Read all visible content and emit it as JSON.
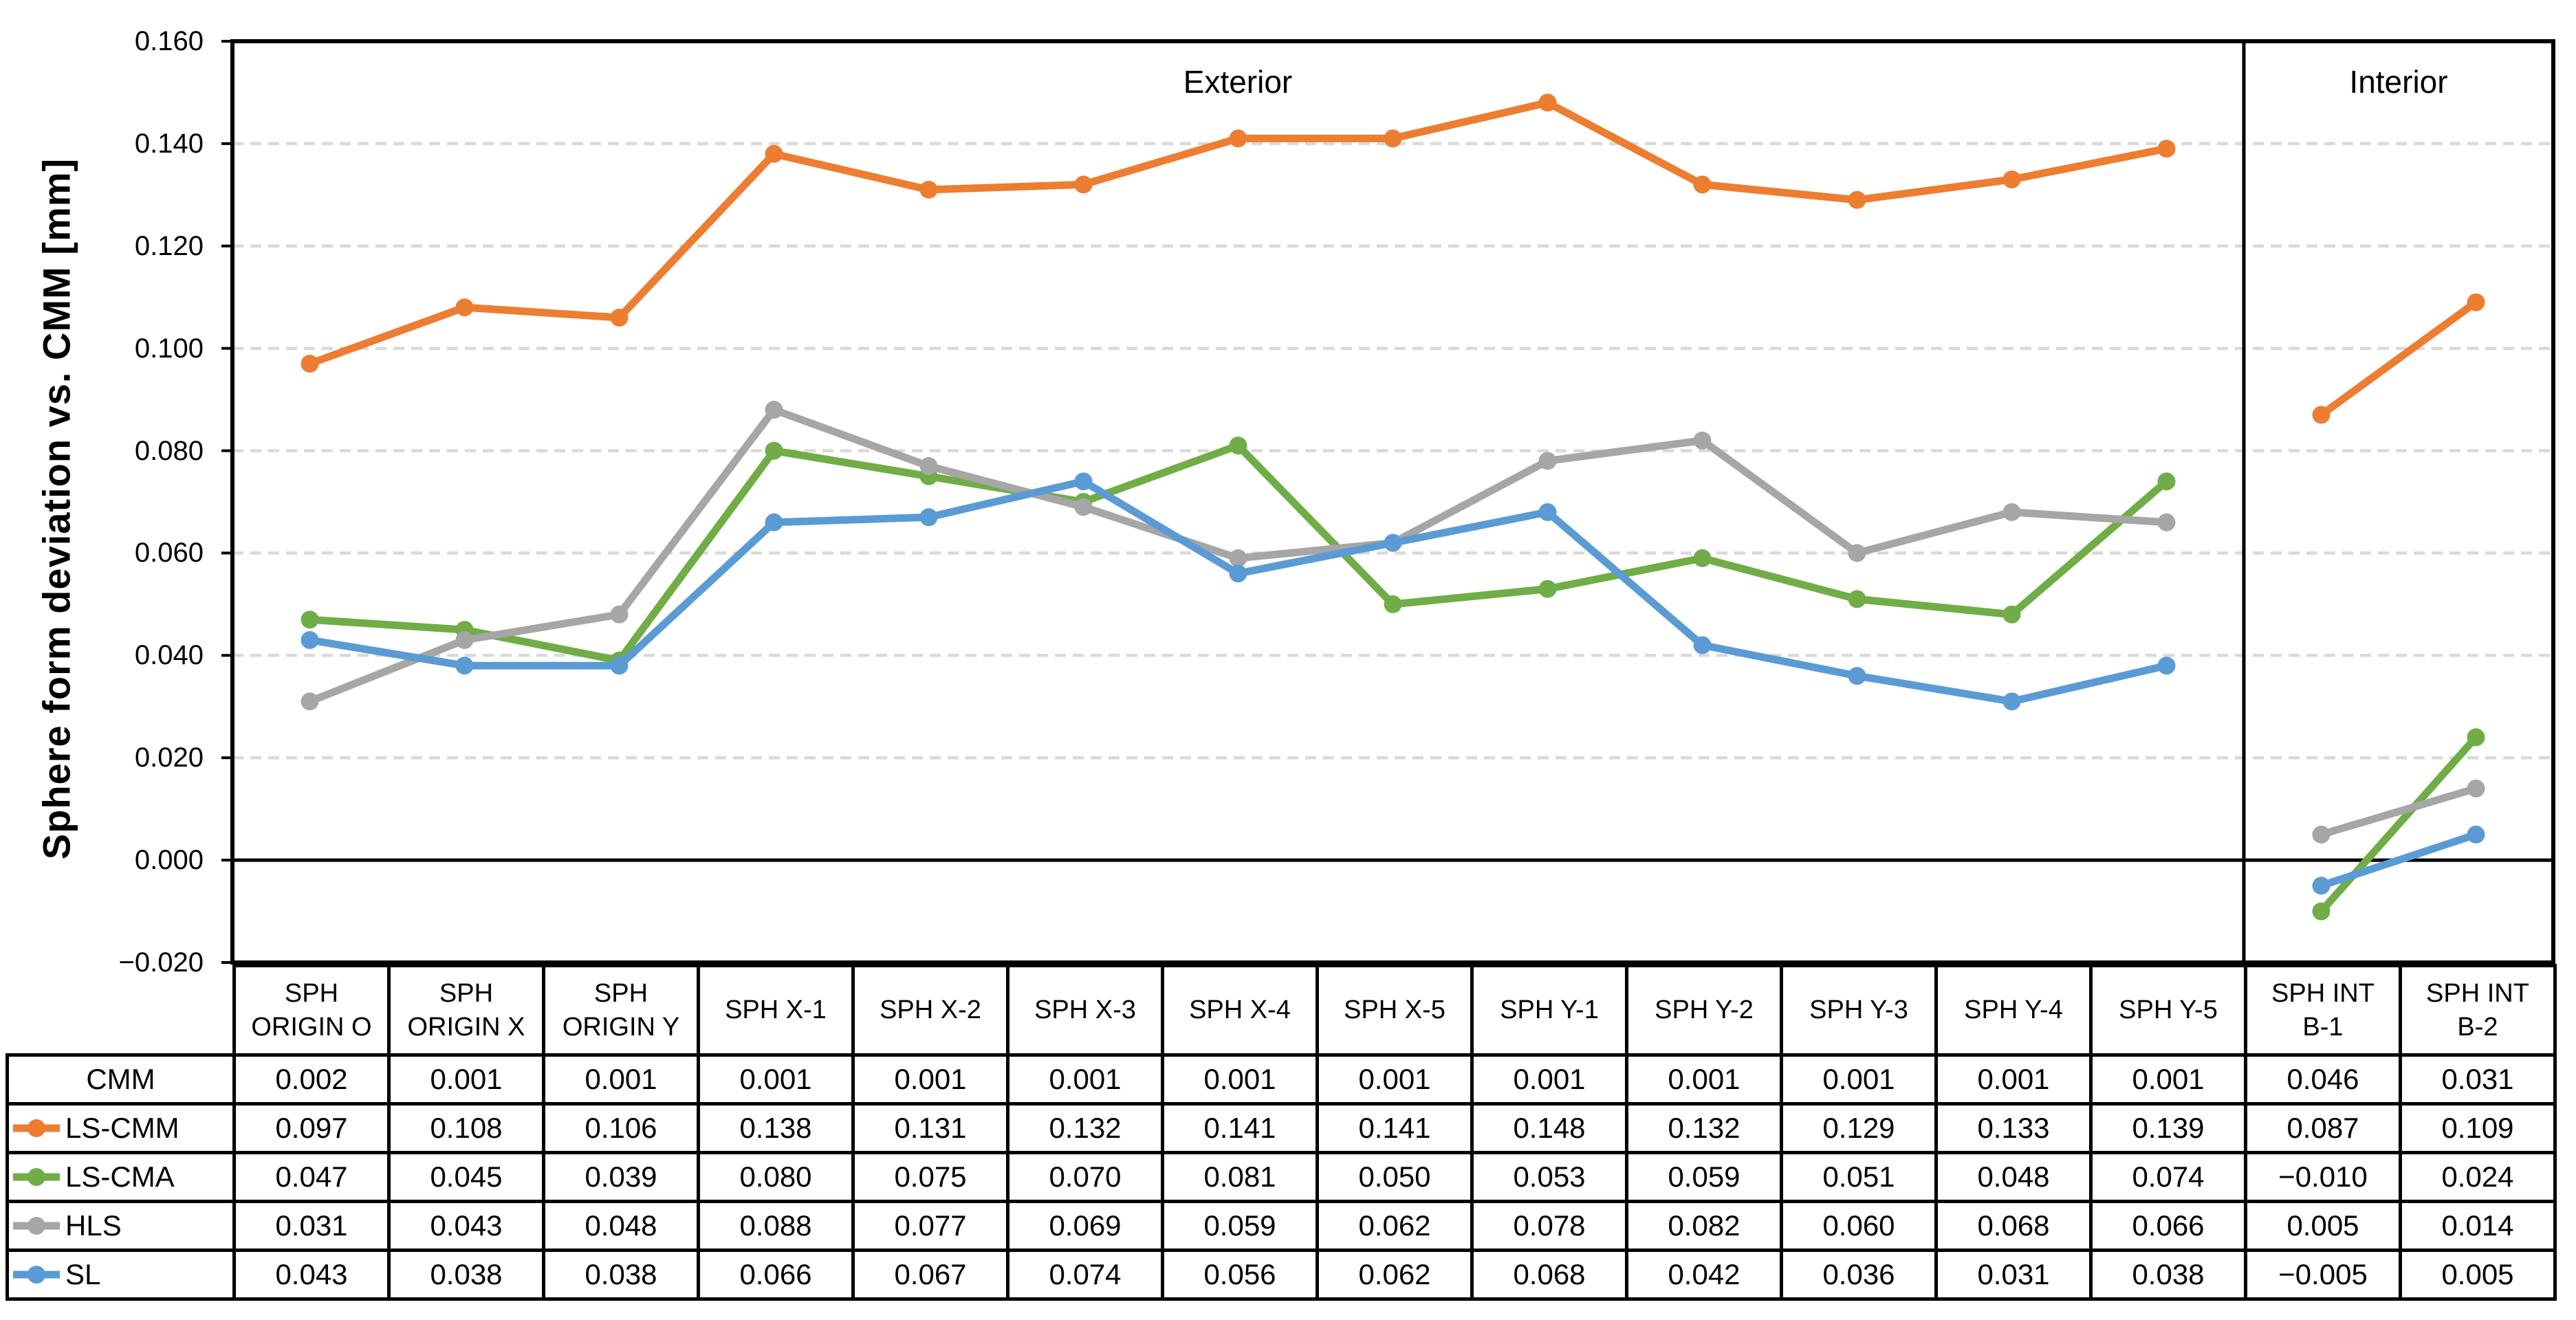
{
  "chart_data": {
    "type": "line",
    "title": "",
    "ylabel": "Sphere form deviation vs. CMM [mm]",
    "xlabel": "",
    "ylim": [
      -0.02,
      0.16
    ],
    "ytick_step": 0.02,
    "yticks": [
      0.16,
      0.14,
      0.12,
      0.1,
      0.08,
      0.06,
      0.04,
      0.02,
      0.0,
      -0.02
    ],
    "grid": "horizontal dashed, solid black zero axis",
    "gridline_color": "#D9D9D9",
    "axis_color": "#000000",
    "legend_position": "table-left",
    "marker": "circle",
    "sections": [
      {
        "label": "Exterior",
        "start": 0,
        "end": 12
      },
      {
        "label": "Interior",
        "start": 13,
        "end": 14
      }
    ],
    "categories": [
      "SPH ORIGIN O",
      "SPH ORIGIN X",
      "SPH ORIGIN Y",
      "SPH X-1",
      "SPH X-2",
      "SPH X-3",
      "SPH X-4",
      "SPH X-5",
      "SPH Y-1",
      "SPH Y-2",
      "SPH Y-3",
      "SPH Y-4",
      "SPH Y-5",
      "SPH INT B-1",
      "SPH INT B-2"
    ],
    "category_lines": [
      [
        "SPH",
        "ORIGIN O"
      ],
      [
        "SPH",
        "ORIGIN X"
      ],
      [
        "SPH",
        "ORIGIN Y"
      ],
      [
        "SPH X-1"
      ],
      [
        "SPH X-2"
      ],
      [
        "SPH X-3"
      ],
      [
        "SPH X-4"
      ],
      [
        "SPH X-5"
      ],
      [
        "SPH Y-1"
      ],
      [
        "SPH Y-2"
      ],
      [
        "SPH Y-3"
      ],
      [
        "SPH Y-4"
      ],
      [
        "SPH Y-5"
      ],
      [
        "SPH INT",
        "B-1"
      ],
      [
        "SPH INT",
        "B-2"
      ]
    ],
    "rows": [
      {
        "name": "CMM",
        "plotted": false,
        "color": null,
        "values": [
          0.002,
          0.001,
          0.001,
          0.001,
          0.001,
          0.001,
          0.001,
          0.001,
          0.001,
          0.001,
          0.001,
          0.001,
          0.001,
          0.046,
          0.031
        ]
      },
      {
        "name": "LS-CMM",
        "plotted": true,
        "color": "#ED7D31",
        "values": [
          0.097,
          0.108,
          0.106,
          0.138,
          0.131,
          0.132,
          0.141,
          0.141,
          0.148,
          0.132,
          0.129,
          0.133,
          0.139,
          0.087,
          0.109
        ]
      },
      {
        "name": "LS-CMA",
        "plotted": true,
        "color": "#70AD47",
        "values": [
          0.047,
          0.045,
          0.039,
          0.08,
          0.075,
          0.07,
          0.081,
          0.05,
          0.053,
          0.059,
          0.051,
          0.048,
          0.074,
          -0.01,
          0.024
        ]
      },
      {
        "name": "HLS",
        "plotted": true,
        "color": "#A6A6A6",
        "values": [
          0.031,
          0.043,
          0.048,
          0.088,
          0.077,
          0.069,
          0.059,
          0.062,
          0.078,
          0.082,
          0.06,
          0.068,
          0.066,
          0.005,
          0.014
        ]
      },
      {
        "name": "SL",
        "plotted": true,
        "color": "#5B9BD5",
        "values": [
          0.043,
          0.038,
          0.038,
          0.066,
          0.067,
          0.074,
          0.056,
          0.062,
          0.068,
          0.042,
          0.036,
          0.031,
          0.038,
          -0.005,
          0.005
        ]
      }
    ]
  }
}
